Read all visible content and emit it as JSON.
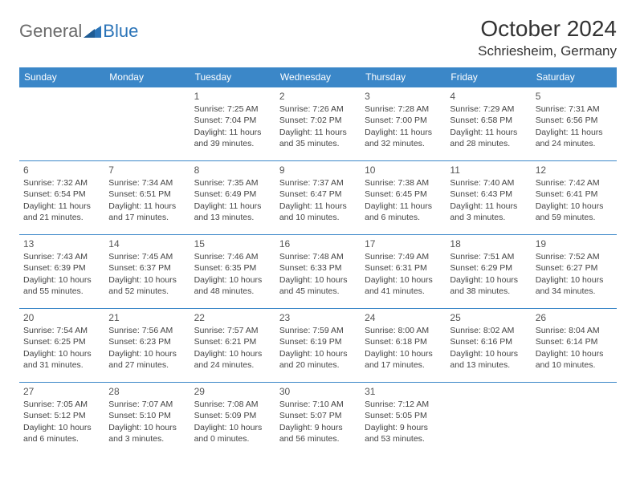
{
  "logo": {
    "general": "General",
    "blue": "Blue"
  },
  "title": "October 2024",
  "location": "Schriesheim, Germany",
  "colors": {
    "header_bg": "#3b87c8",
    "header_text": "#ffffff",
    "cell_border": "#3b87c8",
    "text": "#444444",
    "title_color": "#333333",
    "logo_gray": "#6a6a6a",
    "logo_blue": "#2b74b8",
    "page_bg": "#ffffff"
  },
  "typography": {
    "title_fontsize": 28,
    "location_fontsize": 17,
    "header_fontsize": 12,
    "daynum_fontsize": 12,
    "cell_fontsize": 10.5,
    "logo_fontsize": 22
  },
  "day_headers": [
    "Sunday",
    "Monday",
    "Tuesday",
    "Wednesday",
    "Thursday",
    "Friday",
    "Saturday"
  ],
  "weeks": [
    [
      null,
      null,
      {
        "n": "1",
        "sr": "Sunrise: 7:25 AM",
        "ss": "Sunset: 7:04 PM",
        "d1": "Daylight: 11 hours",
        "d2": "and 39 minutes."
      },
      {
        "n": "2",
        "sr": "Sunrise: 7:26 AM",
        "ss": "Sunset: 7:02 PM",
        "d1": "Daylight: 11 hours",
        "d2": "and 35 minutes."
      },
      {
        "n": "3",
        "sr": "Sunrise: 7:28 AM",
        "ss": "Sunset: 7:00 PM",
        "d1": "Daylight: 11 hours",
        "d2": "and 32 minutes."
      },
      {
        "n": "4",
        "sr": "Sunrise: 7:29 AM",
        "ss": "Sunset: 6:58 PM",
        "d1": "Daylight: 11 hours",
        "d2": "and 28 minutes."
      },
      {
        "n": "5",
        "sr": "Sunrise: 7:31 AM",
        "ss": "Sunset: 6:56 PM",
        "d1": "Daylight: 11 hours",
        "d2": "and 24 minutes."
      }
    ],
    [
      {
        "n": "6",
        "sr": "Sunrise: 7:32 AM",
        "ss": "Sunset: 6:54 PM",
        "d1": "Daylight: 11 hours",
        "d2": "and 21 minutes."
      },
      {
        "n": "7",
        "sr": "Sunrise: 7:34 AM",
        "ss": "Sunset: 6:51 PM",
        "d1": "Daylight: 11 hours",
        "d2": "and 17 minutes."
      },
      {
        "n": "8",
        "sr": "Sunrise: 7:35 AM",
        "ss": "Sunset: 6:49 PM",
        "d1": "Daylight: 11 hours",
        "d2": "and 13 minutes."
      },
      {
        "n": "9",
        "sr": "Sunrise: 7:37 AM",
        "ss": "Sunset: 6:47 PM",
        "d1": "Daylight: 11 hours",
        "d2": "and 10 minutes."
      },
      {
        "n": "10",
        "sr": "Sunrise: 7:38 AM",
        "ss": "Sunset: 6:45 PM",
        "d1": "Daylight: 11 hours",
        "d2": "and 6 minutes."
      },
      {
        "n": "11",
        "sr": "Sunrise: 7:40 AM",
        "ss": "Sunset: 6:43 PM",
        "d1": "Daylight: 11 hours",
        "d2": "and 3 minutes."
      },
      {
        "n": "12",
        "sr": "Sunrise: 7:42 AM",
        "ss": "Sunset: 6:41 PM",
        "d1": "Daylight: 10 hours",
        "d2": "and 59 minutes."
      }
    ],
    [
      {
        "n": "13",
        "sr": "Sunrise: 7:43 AM",
        "ss": "Sunset: 6:39 PM",
        "d1": "Daylight: 10 hours",
        "d2": "and 55 minutes."
      },
      {
        "n": "14",
        "sr": "Sunrise: 7:45 AM",
        "ss": "Sunset: 6:37 PM",
        "d1": "Daylight: 10 hours",
        "d2": "and 52 minutes."
      },
      {
        "n": "15",
        "sr": "Sunrise: 7:46 AM",
        "ss": "Sunset: 6:35 PM",
        "d1": "Daylight: 10 hours",
        "d2": "and 48 minutes."
      },
      {
        "n": "16",
        "sr": "Sunrise: 7:48 AM",
        "ss": "Sunset: 6:33 PM",
        "d1": "Daylight: 10 hours",
        "d2": "and 45 minutes."
      },
      {
        "n": "17",
        "sr": "Sunrise: 7:49 AM",
        "ss": "Sunset: 6:31 PM",
        "d1": "Daylight: 10 hours",
        "d2": "and 41 minutes."
      },
      {
        "n": "18",
        "sr": "Sunrise: 7:51 AM",
        "ss": "Sunset: 6:29 PM",
        "d1": "Daylight: 10 hours",
        "d2": "and 38 minutes."
      },
      {
        "n": "19",
        "sr": "Sunrise: 7:52 AM",
        "ss": "Sunset: 6:27 PM",
        "d1": "Daylight: 10 hours",
        "d2": "and 34 minutes."
      }
    ],
    [
      {
        "n": "20",
        "sr": "Sunrise: 7:54 AM",
        "ss": "Sunset: 6:25 PM",
        "d1": "Daylight: 10 hours",
        "d2": "and 31 minutes."
      },
      {
        "n": "21",
        "sr": "Sunrise: 7:56 AM",
        "ss": "Sunset: 6:23 PM",
        "d1": "Daylight: 10 hours",
        "d2": "and 27 minutes."
      },
      {
        "n": "22",
        "sr": "Sunrise: 7:57 AM",
        "ss": "Sunset: 6:21 PM",
        "d1": "Daylight: 10 hours",
        "d2": "and 24 minutes."
      },
      {
        "n": "23",
        "sr": "Sunrise: 7:59 AM",
        "ss": "Sunset: 6:19 PM",
        "d1": "Daylight: 10 hours",
        "d2": "and 20 minutes."
      },
      {
        "n": "24",
        "sr": "Sunrise: 8:00 AM",
        "ss": "Sunset: 6:18 PM",
        "d1": "Daylight: 10 hours",
        "d2": "and 17 minutes."
      },
      {
        "n": "25",
        "sr": "Sunrise: 8:02 AM",
        "ss": "Sunset: 6:16 PM",
        "d1": "Daylight: 10 hours",
        "d2": "and 13 minutes."
      },
      {
        "n": "26",
        "sr": "Sunrise: 8:04 AM",
        "ss": "Sunset: 6:14 PM",
        "d1": "Daylight: 10 hours",
        "d2": "and 10 minutes."
      }
    ],
    [
      {
        "n": "27",
        "sr": "Sunrise: 7:05 AM",
        "ss": "Sunset: 5:12 PM",
        "d1": "Daylight: 10 hours",
        "d2": "and 6 minutes."
      },
      {
        "n": "28",
        "sr": "Sunrise: 7:07 AM",
        "ss": "Sunset: 5:10 PM",
        "d1": "Daylight: 10 hours",
        "d2": "and 3 minutes."
      },
      {
        "n": "29",
        "sr": "Sunrise: 7:08 AM",
        "ss": "Sunset: 5:09 PM",
        "d1": "Daylight: 10 hours",
        "d2": "and 0 minutes."
      },
      {
        "n": "30",
        "sr": "Sunrise: 7:10 AM",
        "ss": "Sunset: 5:07 PM",
        "d1": "Daylight: 9 hours",
        "d2": "and 56 minutes."
      },
      {
        "n": "31",
        "sr": "Sunrise: 7:12 AM",
        "ss": "Sunset: 5:05 PM",
        "d1": "Daylight: 9 hours",
        "d2": "and 53 minutes."
      },
      null,
      null
    ]
  ]
}
